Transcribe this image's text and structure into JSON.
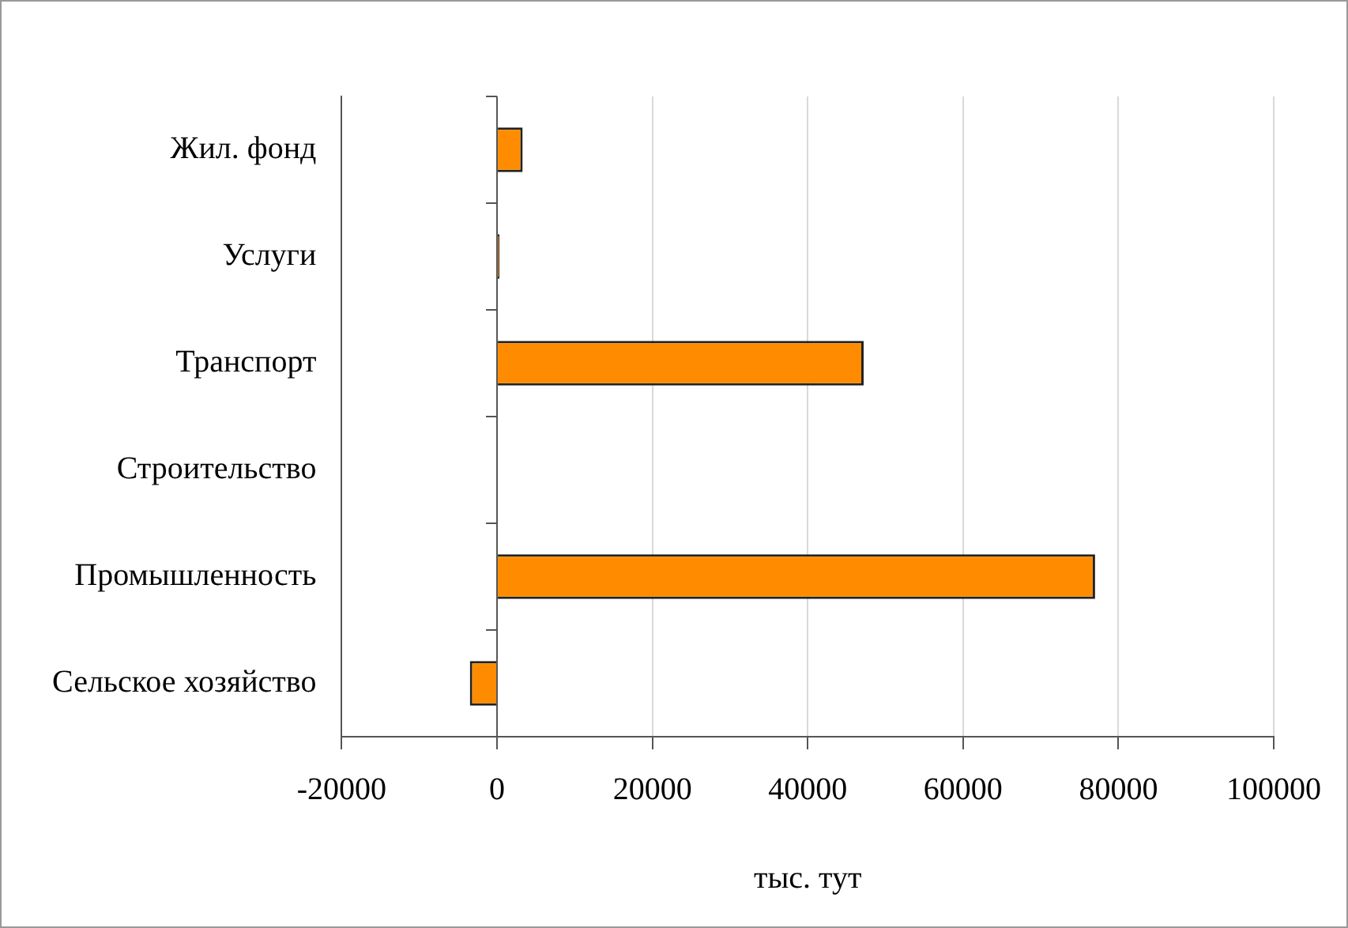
{
  "chart_data": {
    "type": "bar",
    "orientation": "horizontal",
    "xlabel": "тыс. тут",
    "categories": [
      "Жил. фонд",
      "Услуги",
      "Транспорт",
      "Строительство",
      "Промышленность",
      "Сельское хозяйство"
    ],
    "values": [
      3300,
      300,
      47200,
      0,
      77000,
      -3500
    ],
    "color": "#ff8c00",
    "xlim": [
      -20000,
      100000
    ],
    "xticks": [
      -20000,
      0,
      20000,
      40000,
      60000,
      80000,
      100000
    ],
    "grid": "x",
    "legend": false
  }
}
